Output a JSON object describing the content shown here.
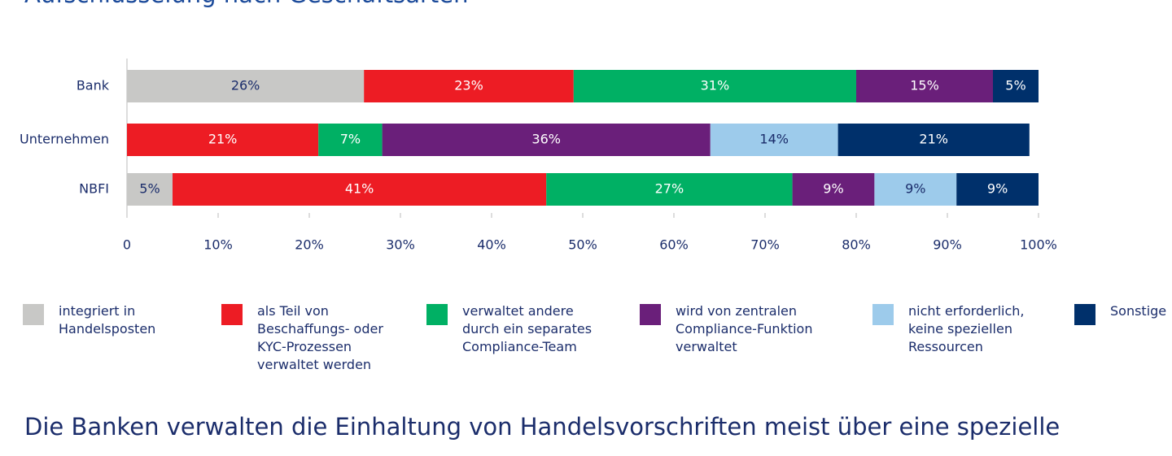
{
  "chart_data": {
    "type": "stacked-barh",
    "title": "Aufschlüsselung nach Geschäftsarten",
    "caption": "Die Banken verwalten die Einhaltung von Handelsvorschriften meist über eine spezielle",
    "categories": [
      "Bank",
      "Unternehmen",
      "NBFI"
    ],
    "series": [
      {
        "name": "integriert in Handelsposten",
        "color": "#c8c8c6",
        "values": [
          26,
          null,
          5
        ],
        "value_labels": [
          "26%",
          null,
          "5%"
        ]
      },
      {
        "name": "als Teil von Beschaffungs- oder KYC-Prozessen verwaltet werden",
        "color": "#ed1c24",
        "values": [
          23,
          21,
          41
        ],
        "value_labels": [
          "23%",
          "21%",
          "41%"
        ]
      },
      {
        "name": "verwaltet andere durch ein separates Compliance-Team",
        "color": "#00b064",
        "values": [
          31,
          7,
          27
        ],
        "value_labels": [
          "31%",
          "7%",
          "27%"
        ]
      },
      {
        "name": "wird von zentralen Compliance-Funktion verwaltet",
        "color": "#6a1f7a",
        "values": [
          15,
          36,
          9
        ],
        "value_labels": [
          "15%",
          "36%",
          "9%"
        ]
      },
      {
        "name": "nicht erforderlich, keine speziellen Ressourcen",
        "color": "#9dcbeb",
        "values": [
          null,
          14,
          9
        ],
        "value_labels": [
          null,
          "14%",
          "9%"
        ]
      },
      {
        "name": "Sonstige",
        "color": "#00306b",
        "values": [
          5,
          21,
          9
        ],
        "value_labels": [
          "5%",
          "21%",
          "9%"
        ]
      }
    ],
    "xlim": [
      0,
      100
    ],
    "xticks": [
      0,
      {
        "value": 10,
        "label": "10%"
      },
      {
        "value": 20,
        "label": "20%"
      },
      {
        "value": 30,
        "label": "30%"
      },
      {
        "value": 40,
        "label": "40%"
      },
      {
        "value": 50,
        "label": "50%"
      },
      {
        "value": 60,
        "label": "60%"
      },
      {
        "value": 70,
        "label": "70%"
      },
      {
        "value": 80,
        "label": "80%"
      },
      {
        "value": 90,
        "label": "90%"
      },
      {
        "value": 100,
        "label": "100%"
      }
    ]
  }
}
